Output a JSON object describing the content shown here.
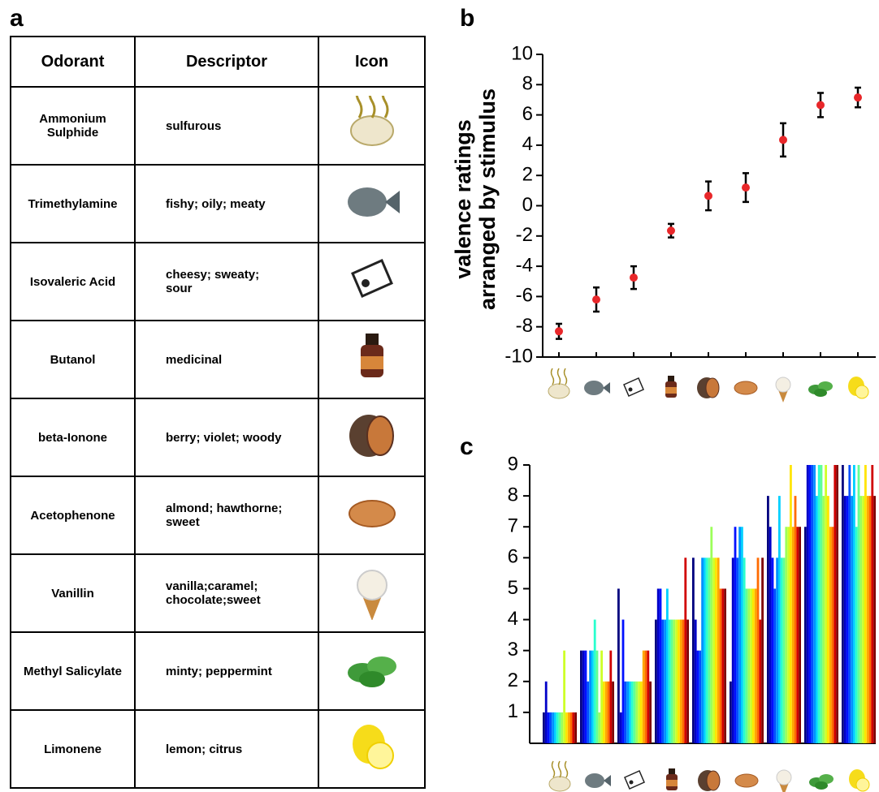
{
  "panel_labels": [
    "a",
    "b",
    "c"
  ],
  "table": {
    "header": [
      "Odorant",
      "Descriptor",
      "Icon"
    ],
    "rows": [
      [
        "Ammonium Sulphide",
        "sulfurous"
      ],
      [
        "Trimethylamine",
        "fishy; oily; meaty"
      ],
      [
        "Isovaleric Acid",
        "cheesy; sweaty; sour"
      ],
      [
        "Butanol",
        "medicinal"
      ],
      [
        "beta-Ionone",
        "berry; violet; woody"
      ],
      [
        "Acetophenone",
        "almond; hawthorne; sweet"
      ],
      [
        "Vanillin",
        "vanilla;caramel; chocolate;sweet"
      ],
      [
        "Methyl Salicylate",
        "minty; peppermint"
      ],
      [
        "Limonene",
        "lemon; citrus"
      ]
    ]
  },
  "chart_data": [
    {
      "type": "errorbar",
      "y_label": [
        "valence ratings",
        "arranged by stimulus"
      ],
      "categories": [
        null,
        null,
        null,
        null,
        null,
        null,
        null,
        null,
        null
      ],
      "values": [
        -8.3,
        -6.2,
        -4.75,
        -1.65,
        0.65,
        1.2,
        4.35,
        6.65,
        7.15
      ],
      "errors": [
        0.5,
        0.8,
        0.75,
        0.45,
        0.95,
        0.95,
        1.1,
        0.8,
        0.65
      ],
      "color": "#e8272a",
      "error_color": "#000000",
      "ylim": [
        -10,
        10
      ],
      "yticks": [
        -10,
        -8,
        -6,
        -4,
        -2,
        0,
        2,
        4,
        6,
        8,
        10
      ]
    },
    {
      "type": "grouped_bar",
      "categories": [
        null,
        null,
        null,
        null,
        null,
        null,
        null,
        null,
        null
      ],
      "ylim": [
        0,
        9
      ],
      "yticks": [
        1,
        2,
        3,
        4,
        5,
        6,
        7,
        8,
        9
      ],
      "series": [
        {
          "color": "#00007f",
          "values": [
            1,
            3,
            5,
            4,
            6,
            2,
            8,
            7,
            9
          ]
        },
        {
          "color": "#0000c8",
          "values": [
            2,
            3,
            1,
            5,
            4,
            6,
            7,
            9,
            8
          ]
        },
        {
          "color": "#0010ff",
          "values": [
            1,
            3,
            4,
            5,
            3,
            7,
            6,
            9,
            8
          ]
        },
        {
          "color": "#0050ff",
          "values": [
            1,
            2,
            2,
            4,
            3,
            6,
            5,
            9,
            9
          ]
        },
        {
          "color": "#0090ff",
          "values": [
            1,
            3,
            2,
            4,
            6,
            7,
            6,
            9,
            8
          ]
        },
        {
          "color": "#00d0ff",
          "values": [
            1,
            3,
            2,
            5,
            6,
            7,
            8,
            8,
            9
          ]
        },
        {
          "color": "#29ffce",
          "values": [
            1,
            4,
            2,
            4,
            6,
            6,
            6,
            9,
            7
          ]
        },
        {
          "color": "#62ff94",
          "values": [
            1,
            3,
            2,
            4,
            6,
            5,
            6,
            9,
            9
          ]
        },
        {
          "color": "#9cff5a",
          "values": [
            1,
            1,
            2,
            4,
            7,
            5,
            7,
            8,
            8
          ]
        },
        {
          "color": "#ceff29",
          "values": [
            3,
            3,
            2,
            4,
            6,
            5,
            7,
            9,
            8
          ]
        },
        {
          "color": "#ffe500",
          "values": [
            1,
            2,
            2,
            4,
            6,
            5,
            9,
            8,
            9
          ]
        },
        {
          "color": "#ffa800",
          "values": [
            1,
            2,
            3,
            4,
            6,
            5,
            7,
            7,
            8
          ]
        },
        {
          "color": "#ff6b00",
          "values": [
            1,
            2,
            3,
            4,
            5,
            6,
            8,
            7,
            8
          ]
        },
        {
          "color": "#d00000",
          "values": [
            1,
            3,
            3,
            6,
            5,
            4,
            7,
            9,
            9
          ]
        },
        {
          "color": "#7f0000",
          "values": [
            1,
            2,
            2,
            4,
            5,
            6,
            7,
            9,
            8
          ]
        }
      ]
    }
  ]
}
